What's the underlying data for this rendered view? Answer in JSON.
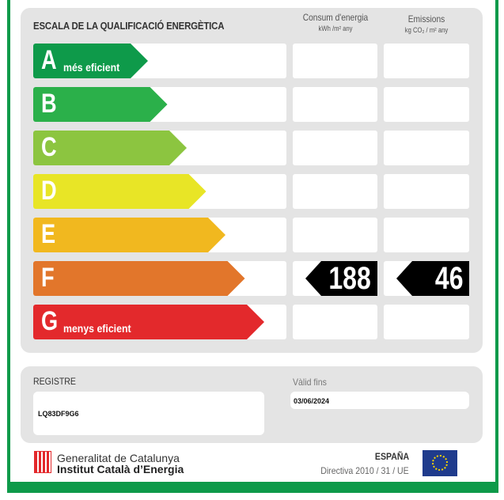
{
  "header": {
    "title": "ESCALA DE LA QUALIFICACIÓ ENERGÈTICA",
    "col1": "Consum d'energia",
    "col1_unit": "kWh /m² any",
    "col2": "Emissions",
    "col2_unit": "kg CO₂ / m² any"
  },
  "ratings": [
    {
      "letter": "A",
      "sub": "més eficient",
      "color": "#0e9a4a"
    },
    {
      "letter": "B",
      "sub": "",
      "color": "#2bb04a"
    },
    {
      "letter": "C",
      "sub": "",
      "color": "#8cc540"
    },
    {
      "letter": "D",
      "sub": "",
      "color": "#e8e526"
    },
    {
      "letter": "E",
      "sub": "",
      "color": "#f1b81f"
    },
    {
      "letter": "F",
      "sub": "",
      "color": "#e2762b"
    },
    {
      "letter": "G",
      "sub": "menys eficient",
      "color": "#e3292c"
    }
  ],
  "current": {
    "rating": "F",
    "consumption": "188",
    "emissions": "46"
  },
  "registry": {
    "label": "REGISTRE",
    "value": "LQ83DF9G6",
    "valid_label": "Vàlid fins",
    "valid_value": "03/06/2024"
  },
  "footer": {
    "org1": "Generalitat de Catalunya",
    "org2": "Institut Català d’Energia",
    "country": "ESPAÑA",
    "directive": "Directiva 2010 / 31 / UE"
  }
}
